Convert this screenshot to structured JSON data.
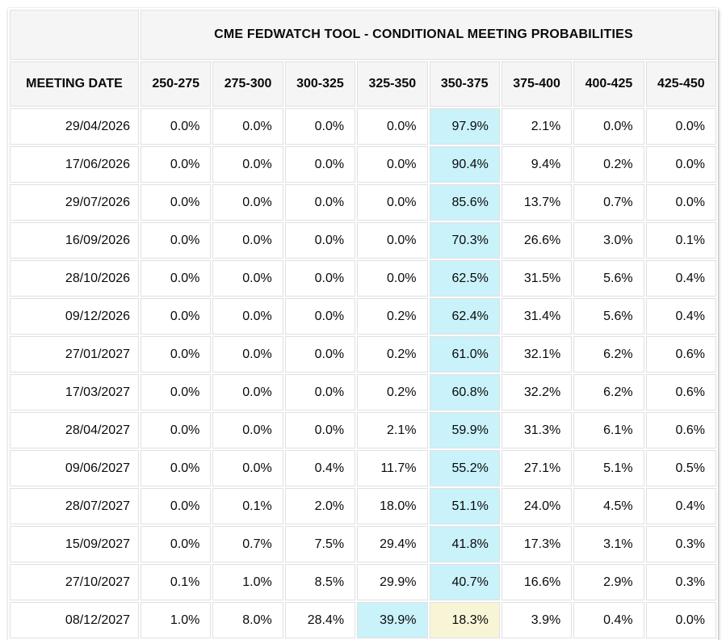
{
  "table": {
    "title": "CME FEDWATCH TOOL - CONDITIONAL MEETING PROBABILITIES",
    "date_header": "MEETING DATE",
    "rate_headers": [
      "250-275",
      "275-300",
      "300-325",
      "325-350",
      "350-375",
      "375-400",
      "400-425",
      "425-450"
    ],
    "rows": [
      {
        "date": "29/04/2026",
        "values": [
          "0.0%",
          "0.0%",
          "0.0%",
          "0.0%",
          "97.9%",
          "2.1%",
          "0.0%",
          "0.0%"
        ],
        "highlights": [
          "",
          "",
          "",
          "",
          "cyan",
          "",
          "",
          ""
        ]
      },
      {
        "date": "17/06/2026",
        "values": [
          "0.0%",
          "0.0%",
          "0.0%",
          "0.0%",
          "90.4%",
          "9.4%",
          "0.2%",
          "0.0%"
        ],
        "highlights": [
          "",
          "",
          "",
          "",
          "cyan",
          "",
          "",
          ""
        ]
      },
      {
        "date": "29/07/2026",
        "values": [
          "0.0%",
          "0.0%",
          "0.0%",
          "0.0%",
          "85.6%",
          "13.7%",
          "0.7%",
          "0.0%"
        ],
        "highlights": [
          "",
          "",
          "",
          "",
          "cyan",
          "",
          "",
          ""
        ]
      },
      {
        "date": "16/09/2026",
        "values": [
          "0.0%",
          "0.0%",
          "0.0%",
          "0.0%",
          "70.3%",
          "26.6%",
          "3.0%",
          "0.1%"
        ],
        "highlights": [
          "",
          "",
          "",
          "",
          "cyan",
          "",
          "",
          ""
        ]
      },
      {
        "date": "28/10/2026",
        "values": [
          "0.0%",
          "0.0%",
          "0.0%",
          "0.0%",
          "62.5%",
          "31.5%",
          "5.6%",
          "0.4%"
        ],
        "highlights": [
          "",
          "",
          "",
          "",
          "cyan",
          "",
          "",
          ""
        ]
      },
      {
        "date": "09/12/2026",
        "values": [
          "0.0%",
          "0.0%",
          "0.0%",
          "0.2%",
          "62.4%",
          "31.4%",
          "5.6%",
          "0.4%"
        ],
        "highlights": [
          "",
          "",
          "",
          "",
          "cyan",
          "",
          "",
          ""
        ]
      },
      {
        "date": "27/01/2027",
        "values": [
          "0.0%",
          "0.0%",
          "0.0%",
          "0.2%",
          "61.0%",
          "32.1%",
          "6.2%",
          "0.6%"
        ],
        "highlights": [
          "",
          "",
          "",
          "",
          "cyan",
          "",
          "",
          ""
        ]
      },
      {
        "date": "17/03/2027",
        "values": [
          "0.0%",
          "0.0%",
          "0.0%",
          "0.2%",
          "60.8%",
          "32.2%",
          "6.2%",
          "0.6%"
        ],
        "highlights": [
          "",
          "",
          "",
          "",
          "cyan",
          "",
          "",
          ""
        ]
      },
      {
        "date": "28/04/2027",
        "values": [
          "0.0%",
          "0.0%",
          "0.0%",
          "2.1%",
          "59.9%",
          "31.3%",
          "6.1%",
          "0.6%"
        ],
        "highlights": [
          "",
          "",
          "",
          "",
          "cyan",
          "",
          "",
          ""
        ]
      },
      {
        "date": "09/06/2027",
        "values": [
          "0.0%",
          "0.0%",
          "0.4%",
          "11.7%",
          "55.2%",
          "27.1%",
          "5.1%",
          "0.5%"
        ],
        "highlights": [
          "",
          "",
          "",
          "",
          "cyan",
          "",
          "",
          ""
        ]
      },
      {
        "date": "28/07/2027",
        "values": [
          "0.0%",
          "0.1%",
          "2.0%",
          "18.0%",
          "51.1%",
          "24.0%",
          "4.5%",
          "0.4%"
        ],
        "highlights": [
          "",
          "",
          "",
          "",
          "cyan",
          "",
          "",
          ""
        ]
      },
      {
        "date": "15/09/2027",
        "values": [
          "0.0%",
          "0.7%",
          "7.5%",
          "29.4%",
          "41.8%",
          "17.3%",
          "3.1%",
          "0.3%"
        ],
        "highlights": [
          "",
          "",
          "",
          "",
          "cyan",
          "",
          "",
          ""
        ]
      },
      {
        "date": "27/10/2027",
        "values": [
          "0.1%",
          "1.0%",
          "8.5%",
          "29.9%",
          "40.7%",
          "16.6%",
          "2.9%",
          "0.3%"
        ],
        "highlights": [
          "",
          "",
          "",
          "",
          "cyan",
          "",
          "",
          ""
        ]
      },
      {
        "date": "08/12/2027",
        "values": [
          "1.0%",
          "8.0%",
          "28.4%",
          "39.9%",
          "18.3%",
          "3.9%",
          "0.4%",
          "0.0%"
        ],
        "highlights": [
          "",
          "",
          "",
          "cyan",
          "yellow",
          "",
          "",
          ""
        ]
      }
    ],
    "colors": {
      "highlight_cyan": "#c9f2fa",
      "highlight_yellow": "#f8f5d6",
      "header_bg": "#f5f5f5",
      "grid_line": "#e0e0e0"
    }
  }
}
